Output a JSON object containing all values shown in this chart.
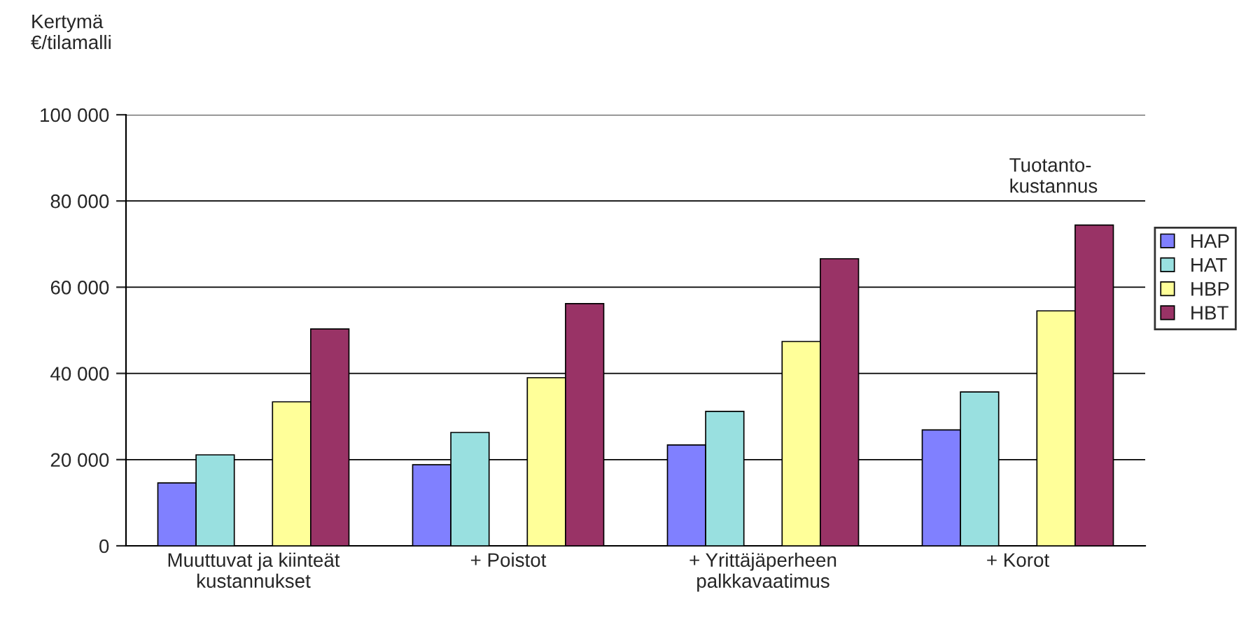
{
  "chart_data": {
    "type": "bar",
    "ylabel": "Kertymä\n€/tilamalli",
    "categories": [
      "Muuttuvat ja kiinteät\nkustannukset",
      "+ Poistot",
      "+ Yrittäjäperheen\npalkkavaatimus",
      "+ Korot"
    ],
    "series": [
      {
        "name": "HAP",
        "color": "#8080ff",
        "values": [
          14600,
          18800,
          23400,
          26900
        ]
      },
      {
        "name": "HAT",
        "color": "#99e0e0",
        "values": [
          21100,
          26300,
          31200,
          35700
        ]
      },
      {
        "name": "HBP",
        "color": "#ffff99",
        "values": [
          33400,
          39000,
          47400,
          54500
        ]
      },
      {
        "name": "HBT",
        "color": "#993366",
        "values": [
          50300,
          56200,
          66600,
          74400
        ]
      }
    ],
    "ylim": [
      0,
      100000
    ],
    "yticks": [
      {
        "value": 0,
        "label": "0"
      },
      {
        "value": 20000,
        "label": "20 000"
      },
      {
        "value": 40000,
        "label": "40 000"
      },
      {
        "value": 60000,
        "label": "60 000"
      },
      {
        "value": 80000,
        "label": "80 000"
      },
      {
        "value": 100000,
        "label": "100 000"
      }
    ],
    "grid": "y",
    "legend": "right",
    "annotations": [
      "Tuotanto-\nkustannus"
    ]
  }
}
